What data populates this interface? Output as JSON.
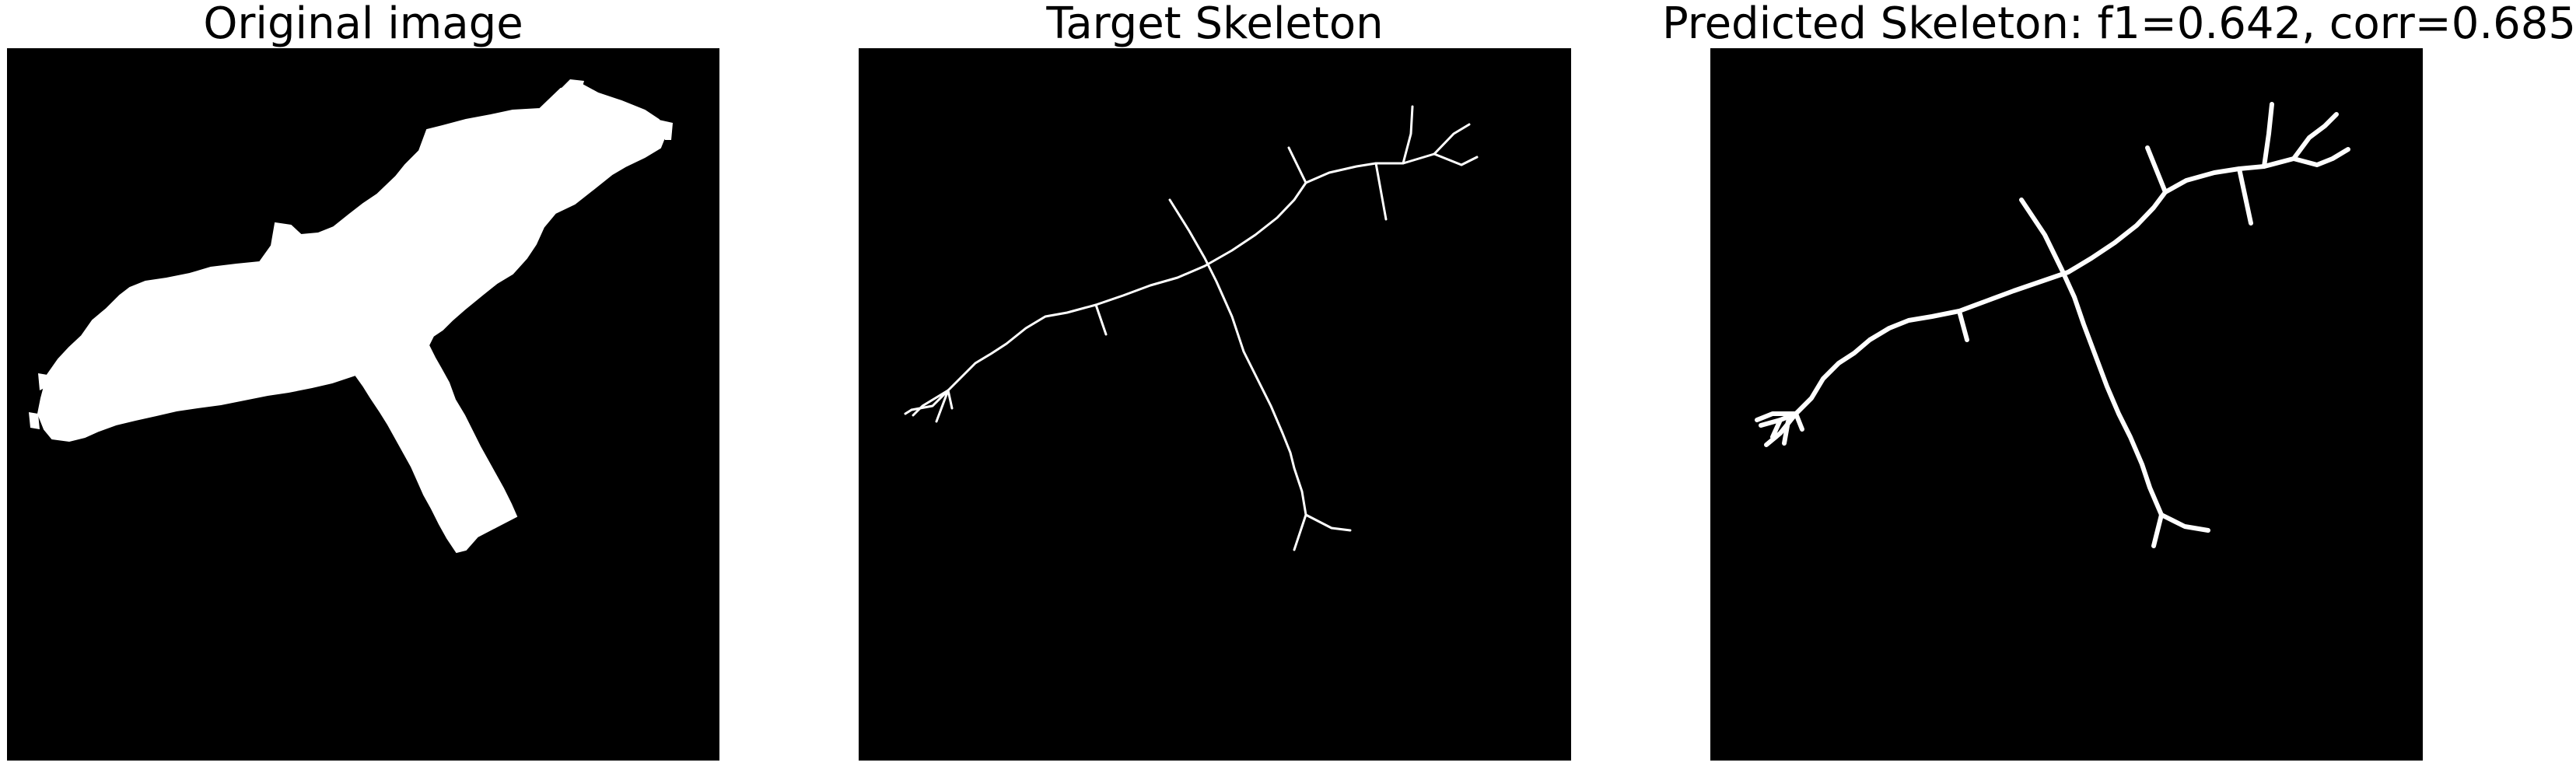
{
  "panels": [
    {
      "title": "Original image"
    },
    {
      "title": "Target Skeleton"
    },
    {
      "title": "Predicted Skeleton: f1=0.642, corr=0.685"
    }
  ],
  "colors": {
    "background": "#000000",
    "foreground": "#ffffff",
    "page": "#ffffff"
  }
}
